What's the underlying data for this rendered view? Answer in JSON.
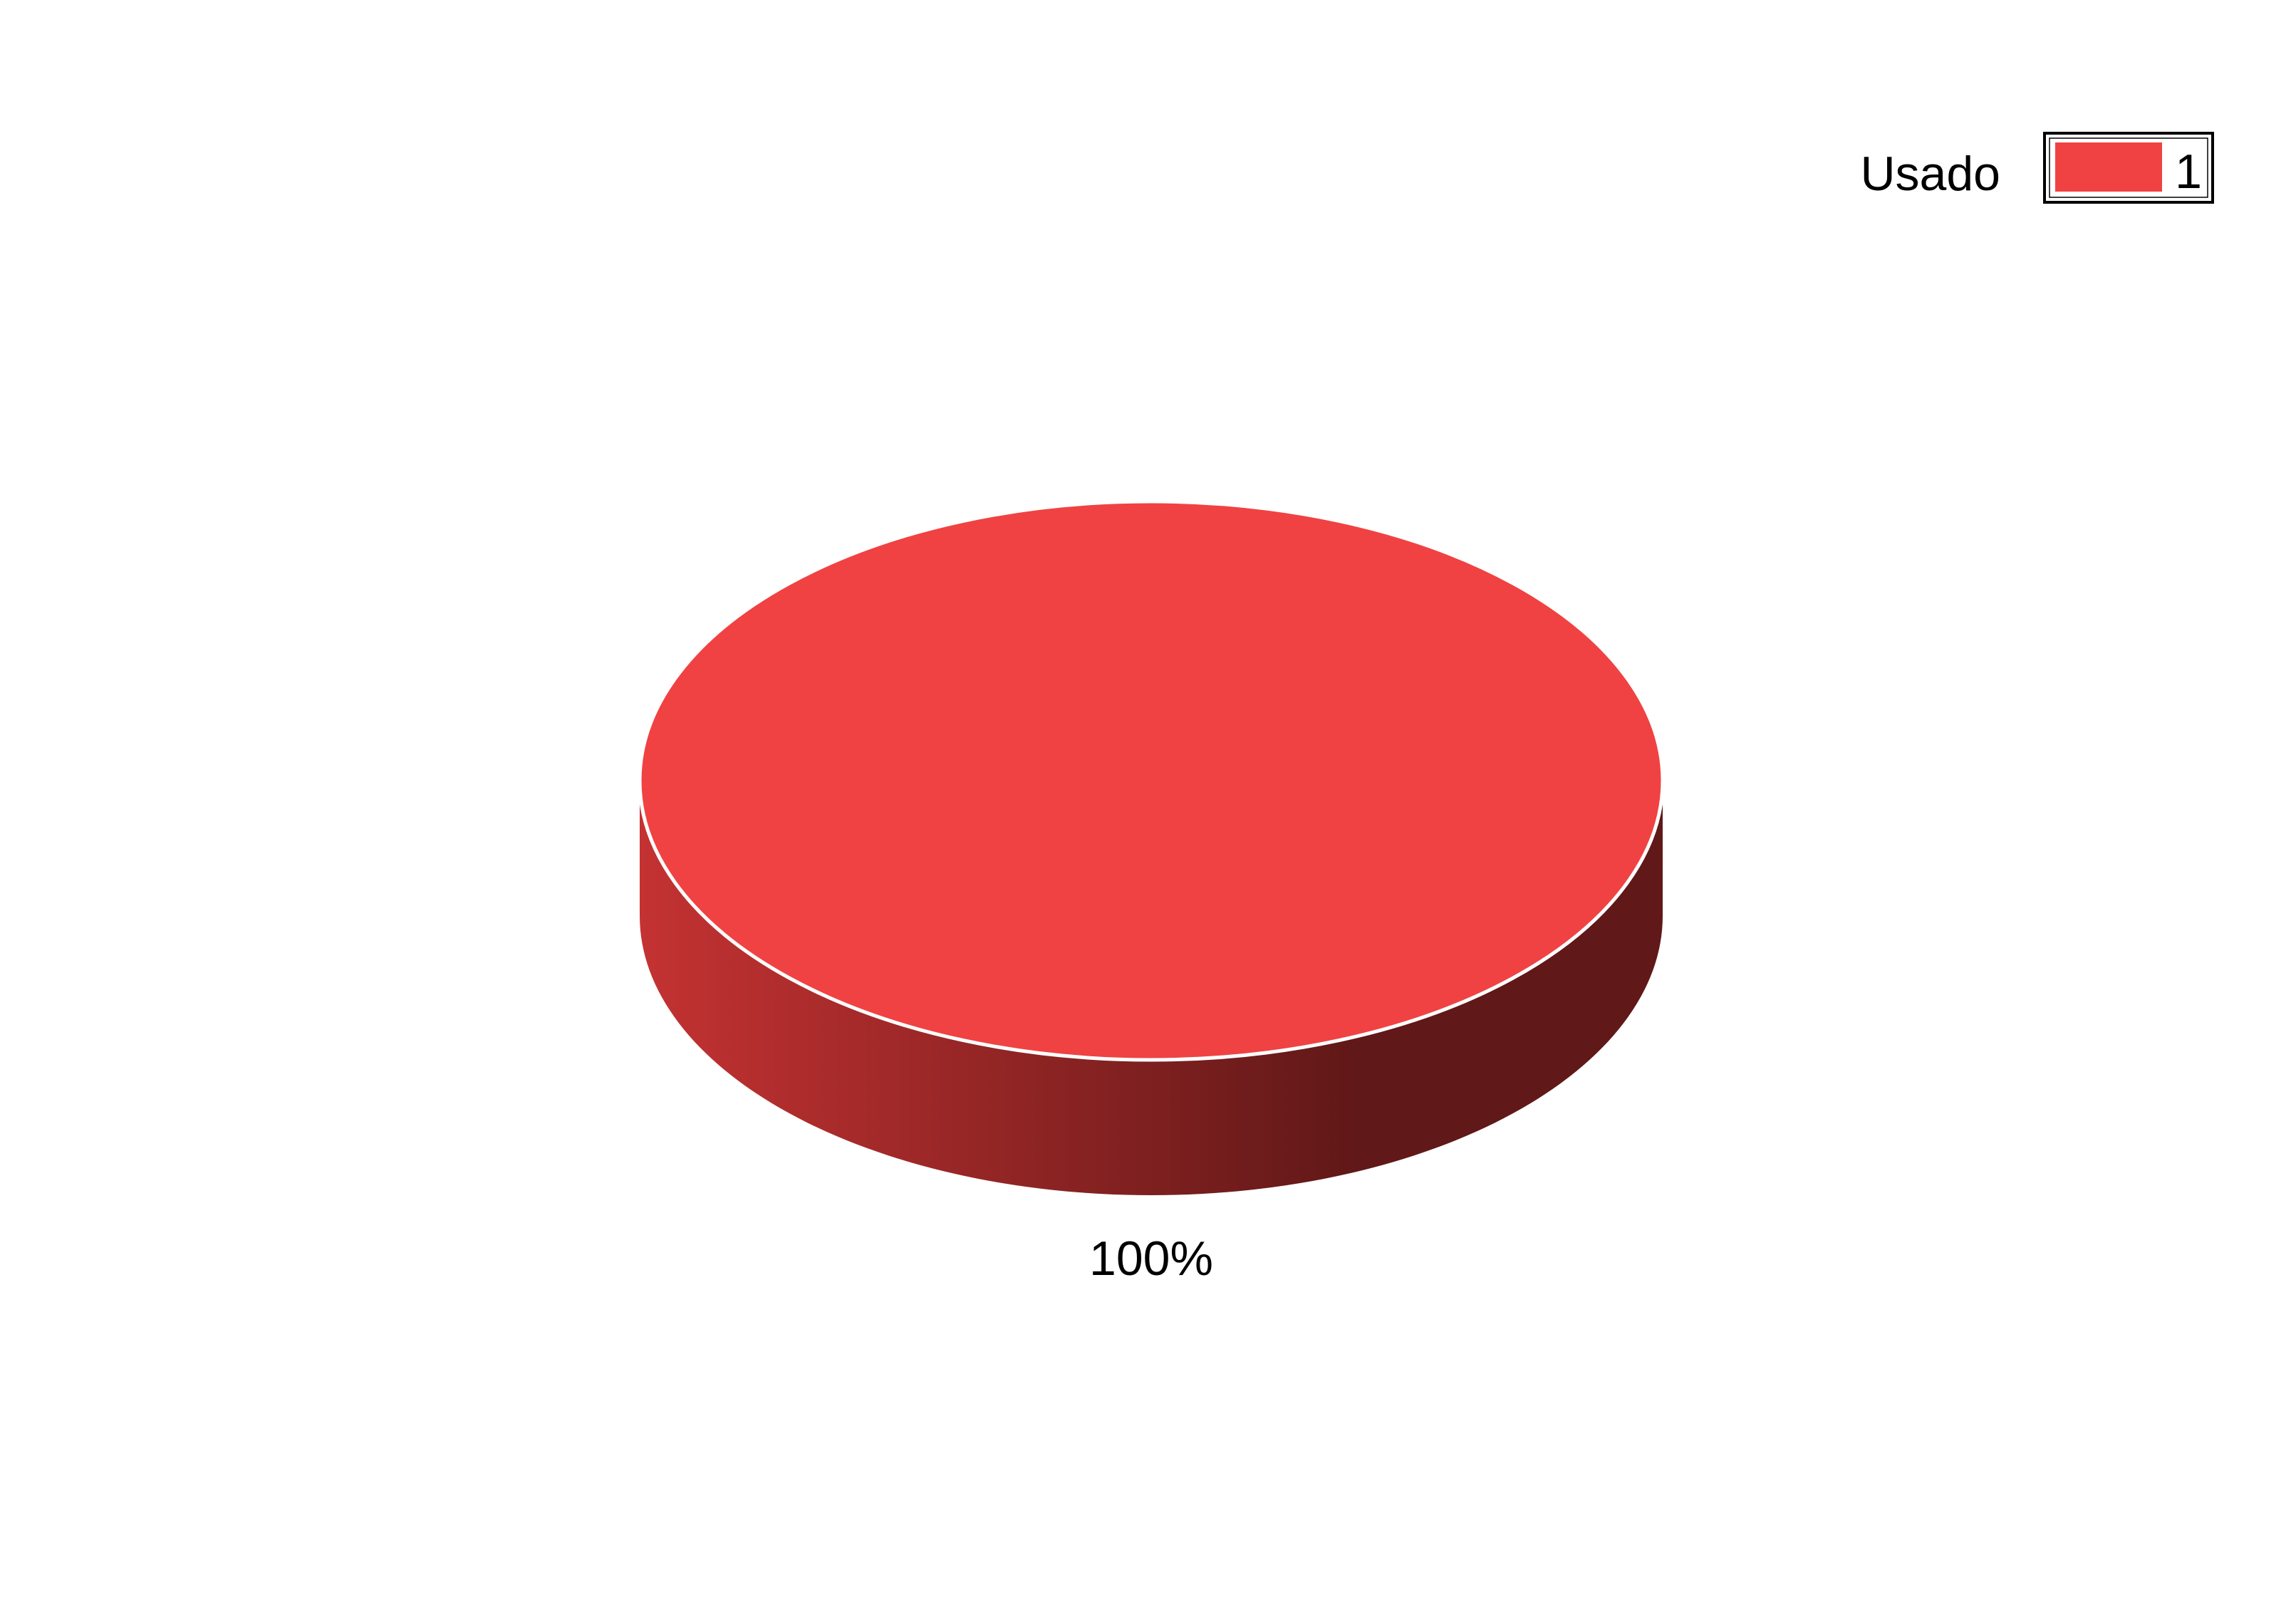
{
  "chart_data": {
    "type": "pie",
    "style": "3d",
    "title": "",
    "legend_placement": "top-right",
    "legend": {
      "label": "Usado",
      "entries": [
        "1"
      ]
    },
    "slices": [
      {
        "label": "1",
        "value": 1,
        "percent_label": "100%",
        "color": "#f04242"
      }
    ],
    "colors": {
      "top": "#f04242",
      "side_light": "#c43232",
      "side_dark": "#611818",
      "rim": "#ffffff"
    }
  }
}
